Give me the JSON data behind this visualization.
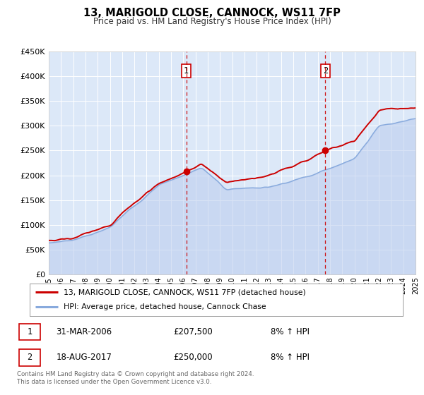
{
  "title": "13, MARIGOLD CLOSE, CANNOCK, WS11 7FP",
  "subtitle": "Price paid vs. HM Land Registry's House Price Index (HPI)",
  "x_start_year": 1995,
  "x_end_year": 2025,
  "ylim": [
    0,
    450000
  ],
  "yticks": [
    0,
    50000,
    100000,
    150000,
    200000,
    250000,
    300000,
    350000,
    400000,
    450000
  ],
  "ytick_labels": [
    "£0",
    "£50K",
    "£100K",
    "£150K",
    "£200K",
    "£250K",
    "£300K",
    "£350K",
    "£400K",
    "£450K"
  ],
  "plot_bg_color": "#dce8f8",
  "grid_color": "#ffffff",
  "red_line_color": "#cc0000",
  "blue_line_color": "#88aadd",
  "blue_fill_color": "#bbccee",
  "vline_color": "#cc0000",
  "purchase1_year": 2006.25,
  "purchase1_value": 207500,
  "purchase2_year": 2017.63,
  "purchase2_value": 250000,
  "legend_label_red": "13, MARIGOLD CLOSE, CANNOCK, WS11 7FP (detached house)",
  "legend_label_blue": "HPI: Average price, detached house, Cannock Chase",
  "table_row1_num": "1",
  "table_row1_date": "31-MAR-2006",
  "table_row1_price": "£207,500",
  "table_row1_hpi": "8% ↑ HPI",
  "table_row2_num": "2",
  "table_row2_date": "18-AUG-2017",
  "table_row2_price": "£250,000",
  "table_row2_hpi": "8% ↑ HPI",
  "footer": "Contains HM Land Registry data © Crown copyright and database right 2024.\nThis data is licensed under the Open Government Licence v3.0.",
  "red_line_lw": 1.4,
  "blue_line_lw": 1.1
}
